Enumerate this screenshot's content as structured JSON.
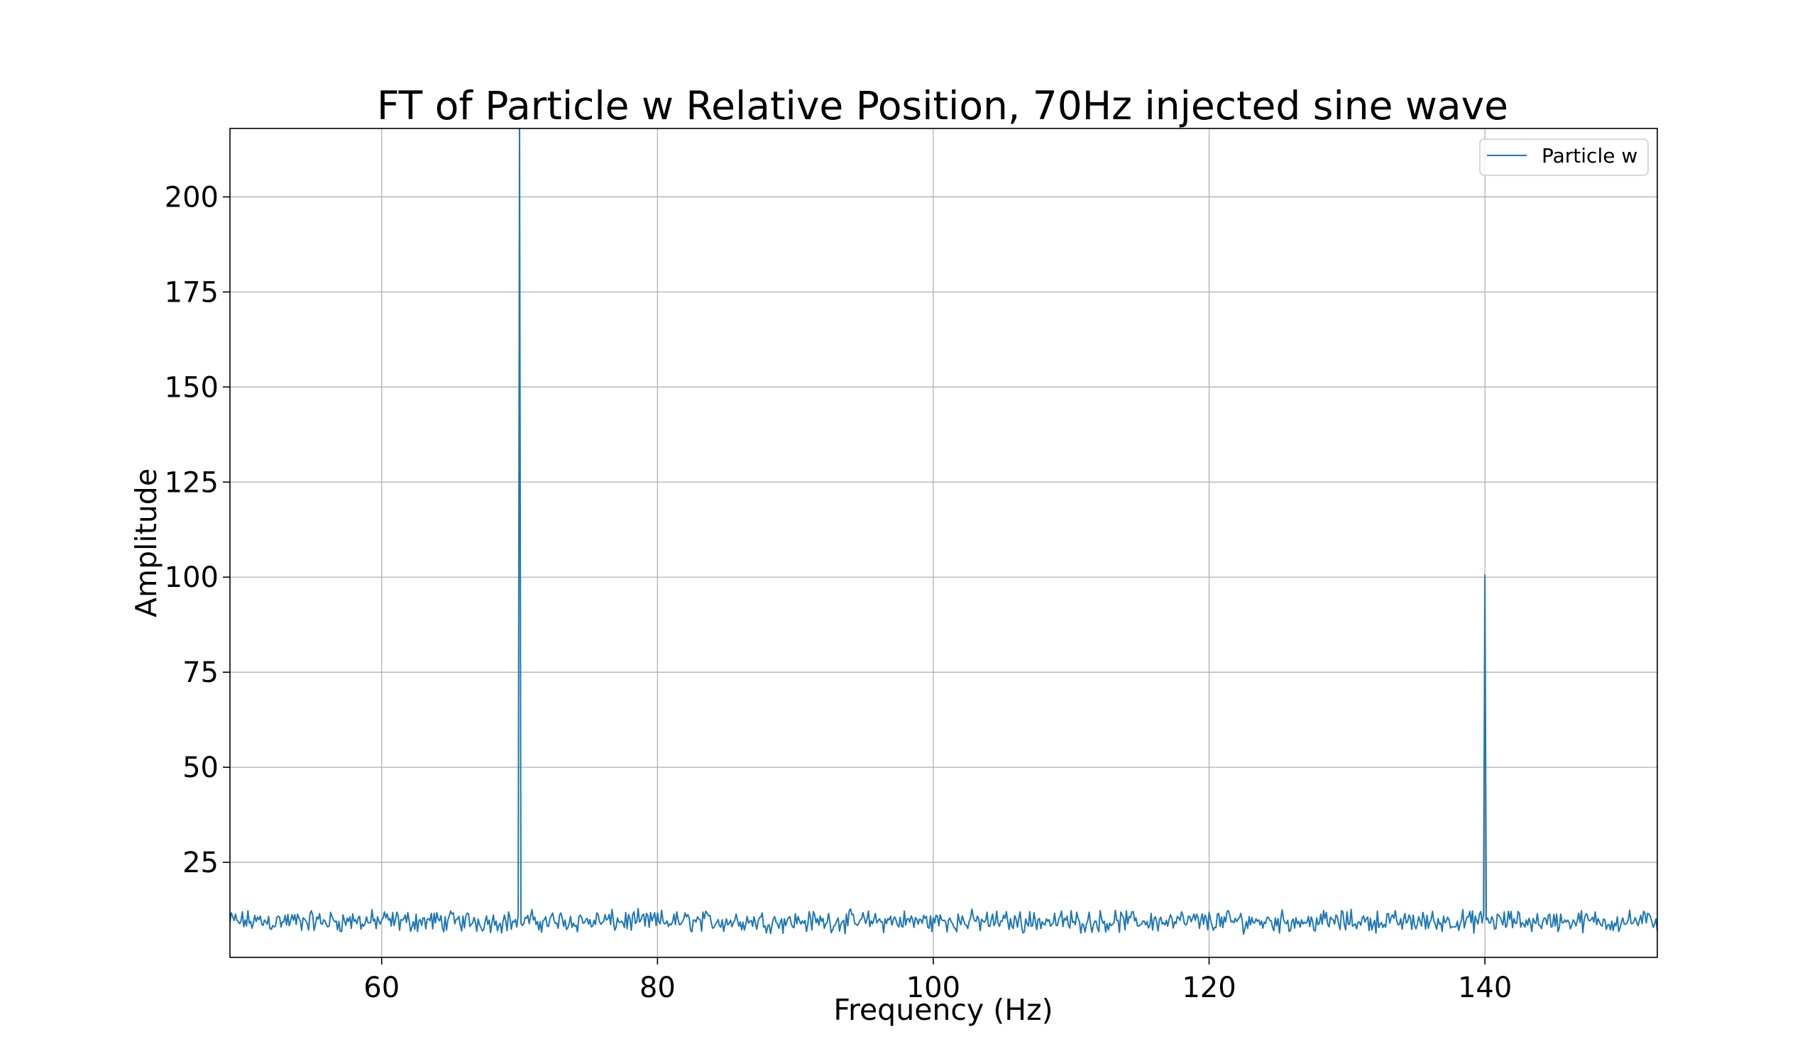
{
  "chart_data": {
    "type": "line",
    "title": "FT of Particle w Relative Position, 70Hz injected sine wave",
    "xlabel": "Frequency (Hz)",
    "ylabel": "Amplitude",
    "xlim": [
      49,
      152.5
    ],
    "ylim": [
      0,
      218
    ],
    "x_ticks": [
      60,
      80,
      100,
      120,
      140
    ],
    "y_ticks": [
      25,
      50,
      75,
      100,
      125,
      150,
      175,
      200
    ],
    "x_tick_labels": [
      "60",
      "80",
      "100",
      "120",
      "140"
    ],
    "y_tick_labels": [
      "25",
      "50",
      "75",
      "100",
      "125",
      "150",
      "175",
      "200"
    ],
    "grid": true,
    "legend_position": "top-right",
    "series": [
      {
        "name": "Particle w",
        "color": "#1f77b4",
        "x_start": 49,
        "x_end": 152.5,
        "x_step": 0.1,
        "noise_baseline": 9.5,
        "noise_spread": 3.5,
        "peaks": [
          {
            "x": 70,
            "y": 218
          },
          {
            "x": 140,
            "y": 100.5
          }
        ]
      }
    ]
  }
}
